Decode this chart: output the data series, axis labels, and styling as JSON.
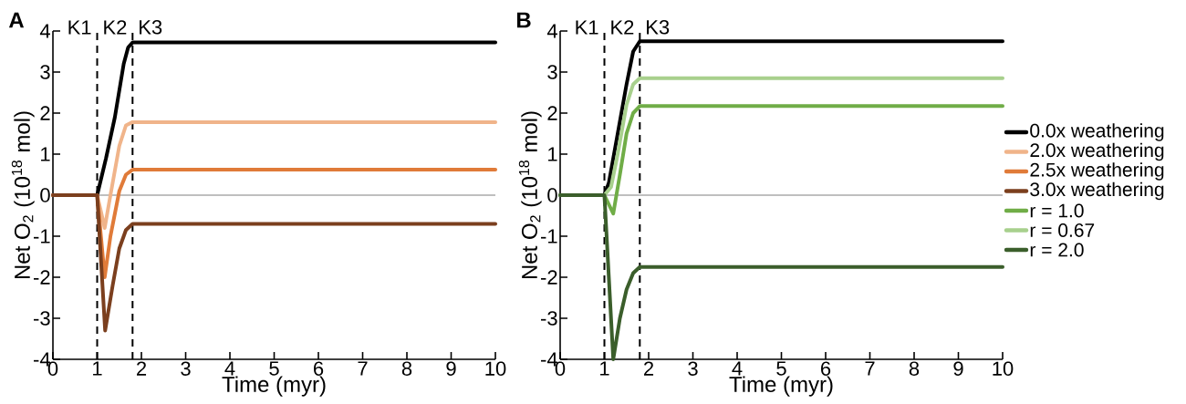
{
  "chart_data": [
    {
      "type": "line",
      "title": "A",
      "xlabel": "Time (myr)",
      "ylabel": "Net O$_{2}$ (10$^{18}$ mol)",
      "xlim": [
        0,
        10
      ],
      "ylim": [
        -4,
        4
      ],
      "xticks": [
        0,
        1,
        2,
        3,
        4,
        5,
        6,
        7,
        8,
        9,
        10
      ],
      "yticks": [
        -4,
        -3,
        -2,
        -1,
        0,
        1,
        2,
        3,
        4
      ],
      "legend": "right",
      "line_style": "solid",
      "ref_lines": [
        {
          "axis": "x",
          "value": 1,
          "color": "#000000",
          "line_style": "dashed"
        },
        {
          "axis": "x",
          "value": 1.8,
          "color": "#000000",
          "line_style": "dashed"
        },
        {
          "axis": "y",
          "value": 0,
          "color": "#808080",
          "line_style": "solid"
        }
      ],
      "annotations": [
        "K1",
        "K2",
        "K3"
      ],
      "series": [
        {
          "name": "0.0x weathering",
          "color": "#000000",
          "x": [
            0,
            1,
            1.2,
            1.4,
            1.6,
            1.7,
            1.8,
            10
          ],
          "values": [
            0,
            0,
            0.9,
            1.9,
            3.2,
            3.6,
            3.72,
            3.72
          ]
        },
        {
          "name": "2.0x weathering",
          "color": "#f0b48a",
          "x": [
            0,
            1,
            1.17,
            1.3,
            1.5,
            1.65,
            1.8,
            10
          ],
          "values": [
            0,
            0,
            -0.8,
            0.0,
            1.2,
            1.7,
            1.78,
            1.78
          ]
        },
        {
          "name": "2.5x weathering",
          "color": "#e07b39",
          "x": [
            0,
            1,
            1.17,
            1.3,
            1.5,
            1.65,
            1.8,
            10
          ],
          "values": [
            0,
            0,
            -2.0,
            -1.0,
            0.1,
            0.5,
            0.62,
            0.62
          ]
        },
        {
          "name": "3.0x weathering",
          "color": "#7b3f1e",
          "x": [
            0,
            1,
            1.18,
            1.35,
            1.5,
            1.65,
            1.8,
            10
          ],
          "values": [
            0,
            0,
            -3.3,
            -2.2,
            -1.3,
            -0.85,
            -0.7,
            -0.7
          ]
        }
      ]
    },
    {
      "type": "line",
      "title": "B",
      "xlabel": "Time (myr)",
      "ylabel": "Net O$_{2}$ (10$^{18}$ mol)",
      "xlim": [
        0,
        10
      ],
      "ylim": [
        -4,
        4
      ],
      "xticks": [
        0,
        1,
        2,
        3,
        4,
        5,
        6,
        7,
        8,
        9,
        10
      ],
      "yticks": [
        -4,
        -3,
        -2,
        -1,
        0,
        1,
        2,
        3,
        4
      ],
      "legend": "right",
      "line_style": "solid",
      "ref_lines": [
        {
          "axis": "x",
          "value": 1,
          "color": "#000000",
          "line_style": "dashed"
        },
        {
          "axis": "x",
          "value": 1.8,
          "color": "#000000",
          "line_style": "dashed"
        },
        {
          "axis": "y",
          "value": 0,
          "color": "#808080",
          "line_style": "solid"
        }
      ],
      "annotations": [
        "K1",
        "K2",
        "K3"
      ],
      "series": [
        {
          "color": "#000000",
          "x": [
            0,
            1,
            1.1,
            1.3,
            1.5,
            1.65,
            1.8,
            10
          ],
          "values": [
            0,
            0,
            0.3,
            1.5,
            2.7,
            3.5,
            3.75,
            3.75
          ]
        },
        {
          "name": "r = 1.0",
          "color": "#70ad47",
          "x": [
            0,
            1,
            1.2,
            1.35,
            1.5,
            1.65,
            1.8,
            10
          ],
          "values": [
            0,
            0,
            -0.45,
            0.5,
            1.5,
            2.0,
            2.17,
            2.17
          ]
        },
        {
          "name": "r = 0.67",
          "color": "#a8d08d",
          "x": [
            0,
            1,
            1.15,
            1.3,
            1.5,
            1.65,
            1.8,
            10
          ],
          "values": [
            0,
            0,
            0.2,
            1.0,
            2.2,
            2.7,
            2.85,
            2.85
          ]
        },
        {
          "name": "r = 2.0",
          "color": "#3b5e2b",
          "x": [
            0,
            1,
            1.2,
            1.35,
            1.5,
            1.65,
            1.8,
            10
          ],
          "values": [
            0,
            0,
            -4.0,
            -3.0,
            -2.3,
            -1.9,
            -1.75,
            -1.75
          ]
        }
      ]
    }
  ]
}
